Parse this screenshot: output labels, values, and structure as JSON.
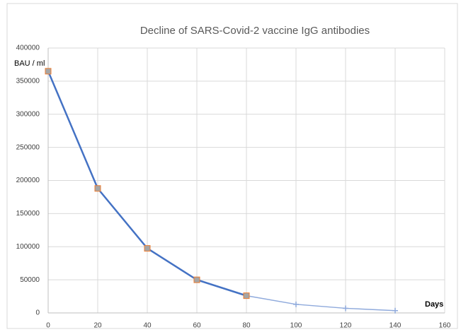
{
  "chart_data": {
    "type": "line",
    "title": "Decline of SARS-Covid-2  vaccine IgG antibodies",
    "ylabel": "BAU /  ml",
    "xlabel": "Days",
    "x": [
      0,
      20,
      40,
      60,
      80,
      100,
      120,
      140
    ],
    "series": [
      {
        "color": "#8faadc",
        "marker": "plus",
        "values": [
          365000,
          188000,
          97500,
          50000,
          26000,
          13000,
          7000,
          3500
        ]
      },
      {
        "color": "#4472c4",
        "marker": "square",
        "values": [
          365000,
          188000,
          97500,
          50000,
          26000,
          null,
          null,
          null
        ]
      }
    ],
    "xlim": [
      0,
      160
    ],
    "xticks": [
      0,
      20,
      40,
      60,
      80,
      100,
      120,
      140,
      160
    ],
    "ylim": [
      0,
      400000
    ],
    "yticks": [
      0,
      50000,
      100000,
      150000,
      200000,
      250000,
      300000,
      350000,
      400000
    ],
    "grid": true
  }
}
